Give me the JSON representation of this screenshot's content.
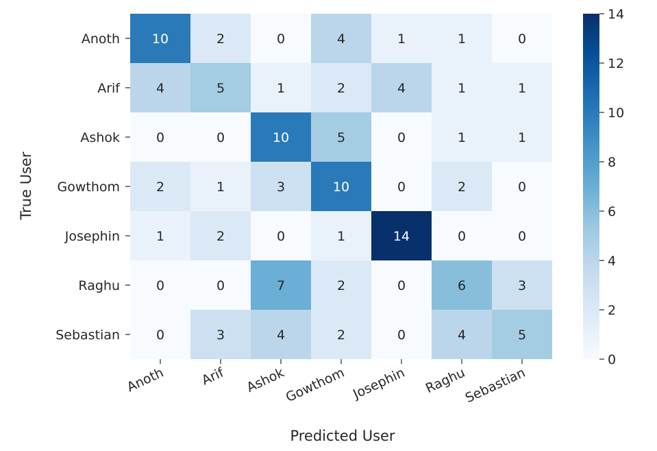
{
  "chart_data": {
    "type": "heatmap",
    "title": "",
    "xlabel": "Predicted User",
    "ylabel": "True User",
    "x_categories": [
      "Anoth",
      "Arif",
      "Ashok",
      "Gowthom",
      "Josephin",
      "Raghu",
      "Sebastian"
    ],
    "y_categories": [
      "Anoth",
      "Arif",
      "Ashok",
      "Gowthom",
      "Josephin",
      "Raghu",
      "Sebastian"
    ],
    "values": [
      [
        10,
        2,
        0,
        4,
        1,
        1,
        0
      ],
      [
        4,
        5,
        1,
        2,
        4,
        1,
        1
      ],
      [
        0,
        0,
        10,
        5,
        0,
        1,
        1
      ],
      [
        2,
        1,
        3,
        10,
        0,
        2,
        0
      ],
      [
        1,
        2,
        0,
        1,
        14,
        0,
        0
      ],
      [
        0,
        0,
        7,
        2,
        0,
        6,
        3
      ],
      [
        0,
        3,
        4,
        2,
        0,
        4,
        5
      ]
    ],
    "colormap": "Blues",
    "color_range": [
      0,
      14
    ],
    "colorbar_ticks": [
      0,
      2,
      4,
      6,
      8,
      10,
      12,
      14
    ],
    "annotations": true
  }
}
